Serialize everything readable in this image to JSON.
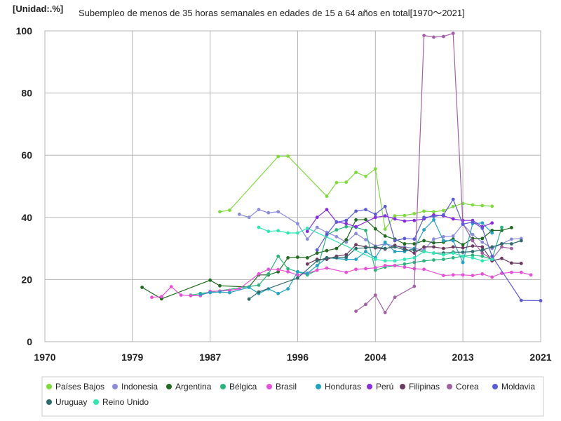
{
  "chart_data": {
    "type": "line",
    "unit_label": "[Unidad:.%]",
    "title": "Subempleo de menos de 35 horas semanales en edades de 15 a 64 años en total[1970～2021]",
    "xlabel": "",
    "ylabel": "",
    "xlim": [
      1970,
      2021
    ],
    "ylim": [
      0,
      100
    ],
    "x_ticks": [
      1970,
      1979,
      1987,
      1996,
      2004,
      2013,
      2021
    ],
    "y_ticks": [
      0,
      20,
      40,
      60,
      80,
      100
    ],
    "grid": true,
    "legend_position": "bottom",
    "series": [
      {
        "name": "Países Bajos",
        "color": "#7ddc3a",
        "points": [
          [
            1988,
            41.8
          ],
          [
            1989,
            42.3
          ],
          [
            1994,
            59.6
          ],
          [
            1995,
            59.7
          ],
          [
            1999,
            46.8
          ],
          [
            2000,
            51.2
          ],
          [
            2001,
            51.3
          ],
          [
            2002,
            54.5
          ],
          [
            2003,
            53.2
          ],
          [
            2004,
            55.6
          ],
          [
            2005,
            36.2
          ],
          [
            2006,
            40.5
          ],
          [
            2007,
            40.6
          ],
          [
            2008,
            41.2
          ],
          [
            2009,
            42.0
          ],
          [
            2010,
            41.8
          ],
          [
            2011,
            42.2
          ],
          [
            2012,
            43.5
          ],
          [
            2013,
            44.5
          ],
          [
            2014,
            44.0
          ],
          [
            2015,
            43.8
          ],
          [
            2016,
            43.6
          ]
        ]
      },
      {
        "name": "Indonesia",
        "color": "#8c8cdc",
        "points": [
          [
            1990,
            41.0
          ],
          [
            1991,
            40.0
          ],
          [
            1992,
            42.5
          ],
          [
            1993,
            41.5
          ],
          [
            1994,
            41.8
          ],
          [
            1996,
            38.0
          ],
          [
            1997,
            33.0
          ],
          [
            1998,
            36.8
          ],
          [
            1999,
            35.2
          ],
          [
            2000,
            33.8
          ],
          [
            2001,
            32.0
          ],
          [
            2002,
            34.8
          ],
          [
            2003,
            32.8
          ],
          [
            2004,
            30.8
          ],
          [
            2005,
            31.5
          ],
          [
            2006,
            30.8
          ],
          [
            2007,
            30.5
          ],
          [
            2008,
            30.0
          ],
          [
            2009,
            29.5
          ],
          [
            2010,
            33.0
          ],
          [
            2011,
            33.8
          ],
          [
            2012,
            34.0
          ],
          [
            2013,
            37.8
          ],
          [
            2014,
            34.5
          ],
          [
            2015,
            32.0
          ],
          [
            2016,
            30.0
          ],
          [
            2017,
            31.5
          ],
          [
            2018,
            33.0
          ],
          [
            2019,
            33.2
          ]
        ]
      },
      {
        "name": "Argentina",
        "color": "#1f6b1f",
        "points": [
          [
            1980,
            17.5
          ],
          [
            1982,
            13.8
          ],
          [
            1987,
            19.8
          ],
          [
            1988,
            18.0
          ],
          [
            1991,
            17.6
          ],
          [
            1992,
            21.5
          ],
          [
            1993,
            21.5
          ],
          [
            1994,
            22.5
          ],
          [
            1995,
            27.0
          ],
          [
            1996,
            27.2
          ],
          [
            1997,
            27.0
          ],
          [
            1998,
            28.5
          ],
          [
            1999,
            29.3
          ],
          [
            2000,
            30.0
          ],
          [
            2001,
            32.8
          ],
          [
            2002,
            39.2
          ],
          [
            2003,
            39.3
          ],
          [
            2004,
            36.3
          ],
          [
            2005,
            34.0
          ],
          [
            2006,
            33.0
          ],
          [
            2007,
            31.5
          ],
          [
            2008,
            31.5
          ],
          [
            2009,
            32.5
          ],
          [
            2010,
            31.8
          ],
          [
            2011,
            32.0
          ],
          [
            2012,
            33.0
          ],
          [
            2013,
            31.2
          ],
          [
            2014,
            33.2
          ],
          [
            2015,
            33.2
          ],
          [
            2016,
            35.8
          ],
          [
            2017,
            35.8
          ],
          [
            2018,
            36.7
          ]
        ]
      },
      {
        "name": "Bélgica",
        "color": "#2ab57d",
        "points": [
          [
            1985,
            15.0
          ],
          [
            1986,
            15.5
          ],
          [
            1992,
            18.2
          ],
          [
            1993,
            21.8
          ],
          [
            1994,
            27.5
          ],
          [
            1995,
            23.5
          ],
          [
            1996,
            22.5
          ],
          [
            1997,
            21.5
          ],
          [
            1998,
            23.0
          ],
          [
            1999,
            34.3
          ],
          [
            2000,
            36.0
          ],
          [
            2001,
            37.0
          ],
          [
            2002,
            36.8
          ],
          [
            2003,
            35.8
          ],
          [
            2004,
            23.0
          ],
          [
            2005,
            24.0
          ],
          [
            2006,
            24.5
          ],
          [
            2007,
            25.0
          ],
          [
            2008,
            25.5
          ],
          [
            2009,
            26.0
          ],
          [
            2010,
            26.3
          ],
          [
            2011,
            26.5
          ],
          [
            2012,
            27.0
          ],
          [
            2013,
            27.5
          ],
          [
            2014,
            27.8
          ],
          [
            2015,
            27.5
          ],
          [
            2016,
            26.5
          ],
          [
            2017,
            36.8
          ]
        ]
      },
      {
        "name": "Brasil",
        "color": "#e84fd8",
        "points": [
          [
            1981,
            14.3
          ],
          [
            1982,
            14.5
          ],
          [
            1983,
            17.7
          ],
          [
            1984,
            15.0
          ],
          [
            1985,
            14.8
          ],
          [
            1986,
            14.8
          ],
          [
            1987,
            16.2
          ],
          [
            1988,
            16.3
          ],
          [
            1989,
            16.5
          ],
          [
            1990,
            17.0
          ],
          [
            1992,
            21.8
          ],
          [
            1993,
            23.3
          ],
          [
            1994,
            23.2
          ],
          [
            1995,
            22.5
          ],
          [
            1996,
            21.5
          ],
          [
            1997,
            22.0
          ],
          [
            1998,
            23.0
          ],
          [
            1999,
            23.7
          ],
          [
            2001,
            22.3
          ],
          [
            2002,
            23.3
          ],
          [
            2003,
            23.5
          ],
          [
            2004,
            23.8
          ],
          [
            2005,
            24.5
          ],
          [
            2006,
            24.5
          ],
          [
            2007,
            24.0
          ],
          [
            2008,
            23.5
          ],
          [
            2009,
            23.3
          ],
          [
            2011,
            21.3
          ],
          [
            2012,
            21.5
          ],
          [
            2013,
            21.5
          ],
          [
            2014,
            21.3
          ],
          [
            2015,
            21.8
          ],
          [
            2016,
            20.8
          ],
          [
            2017,
            22.0
          ],
          [
            2018,
            22.3
          ],
          [
            2019,
            22.3
          ],
          [
            2020,
            21.5
          ]
        ]
      },
      {
        "name": "Honduras",
        "color": "#23a3c2",
        "points": [
          [
            1986,
            15.2
          ],
          [
            1987,
            15.8
          ],
          [
            1988,
            16.0
          ],
          [
            1989,
            15.8
          ],
          [
            1991,
            17.5
          ],
          [
            1992,
            15.5
          ],
          [
            1993,
            17.0
          ],
          [
            1994,
            15.5
          ],
          [
            1995,
            17.0
          ],
          [
            1996,
            22.5
          ],
          [
            1997,
            22.0
          ],
          [
            1998,
            24.5
          ],
          [
            1999,
            27.0
          ],
          [
            2001,
            26.5
          ],
          [
            2002,
            26.5
          ],
          [
            2003,
            29.0
          ],
          [
            2004,
            27.0
          ],
          [
            2005,
            32.0
          ],
          [
            2006,
            29.0
          ],
          [
            2007,
            29.0
          ],
          [
            2008,
            30.0
          ],
          [
            2009,
            36.0
          ],
          [
            2010,
            39.2
          ],
          [
            2011,
            32.5
          ],
          [
            2012,
            32.5
          ],
          [
            2013,
            25.5
          ],
          [
            2014,
            38.0
          ],
          [
            2015,
            38.2
          ],
          [
            2016,
            35.0
          ]
        ]
      },
      {
        "name": "Perú",
        "color": "#8a2be2",
        "points": [
          [
            1997,
            35.5
          ],
          [
            1998,
            40.0
          ],
          [
            1999,
            42.5
          ],
          [
            2000,
            38.5
          ],
          [
            2001,
            38.0
          ],
          [
            2002,
            37.0
          ],
          [
            2004,
            40.0
          ],
          [
            2005,
            40.5
          ],
          [
            2006,
            39.5
          ],
          [
            2007,
            38.8
          ],
          [
            2008,
            39.0
          ],
          [
            2009,
            39.5
          ],
          [
            2010,
            40.8
          ],
          [
            2011,
            40.5
          ],
          [
            2012,
            39.5
          ],
          [
            2013,
            39.0
          ],
          [
            2014,
            39.0
          ],
          [
            2015,
            37.0
          ],
          [
            2016,
            38.2
          ]
        ]
      },
      {
        "name": "Filipinas",
        "color": "#6b3a5e",
        "points": [
          [
            1997,
            25.0
          ],
          [
            1998,
            26.5
          ],
          [
            1999,
            26.5
          ],
          [
            2000,
            27.5
          ],
          [
            2001,
            28.0
          ],
          [
            2002,
            31.2
          ],
          [
            2003,
            30.5
          ],
          [
            2004,
            30.2
          ],
          [
            2005,
            29.8
          ],
          [
            2006,
            31.0
          ],
          [
            2007,
            30.0
          ],
          [
            2008,
            28.5
          ],
          [
            2009,
            30.5
          ],
          [
            2010,
            30.5
          ],
          [
            2011,
            30.0
          ],
          [
            2012,
            30.5
          ],
          [
            2013,
            30.2
          ],
          [
            2014,
            30.8
          ],
          [
            2015,
            30.5
          ],
          [
            2016,
            26.0
          ],
          [
            2017,
            26.8
          ],
          [
            2018,
            25.3
          ],
          [
            2019,
            25.2
          ]
        ]
      },
      {
        "name": "Corea",
        "color": "#a35fa6",
        "points": [
          [
            2002,
            9.8
          ],
          [
            2003,
            12.0
          ],
          [
            2004,
            15.0
          ],
          [
            2005,
            9.4
          ],
          [
            2006,
            14.3
          ],
          [
            2008,
            17.8
          ],
          [
            2009,
            98.5
          ],
          [
            2010,
            98.0
          ],
          [
            2011,
            98.2
          ],
          [
            2012,
            99.2
          ],
          [
            2013,
            38.0
          ],
          [
            2014,
            32.5
          ],
          [
            2015,
            28.5
          ],
          [
            2016,
            26.5
          ],
          [
            2017,
            30.5
          ],
          [
            2018,
            30.0
          ]
        ]
      },
      {
        "name": "Moldavia",
        "color": "#5b5bd6",
        "points": [
          [
            1998,
            29.5
          ],
          [
            1999,
            34.5
          ],
          [
            2000,
            38.5
          ],
          [
            2001,
            39.0
          ],
          [
            2002,
            42.0
          ],
          [
            2003,
            42.5
          ],
          [
            2004,
            41.0
          ],
          [
            2005,
            43.5
          ],
          [
            2006,
            32.5
          ],
          [
            2007,
            33.2
          ],
          [
            2008,
            33.0
          ],
          [
            2009,
            40.0
          ],
          [
            2010,
            40.3
          ],
          [
            2011,
            40.8
          ],
          [
            2012,
            45.8
          ],
          [
            2013,
            37.8
          ],
          [
            2014,
            38.5
          ],
          [
            2015,
            36.5
          ],
          [
            2016,
            27.5
          ],
          [
            2019,
            13.3
          ],
          [
            2021,
            13.2
          ]
        ]
      },
      {
        "name": "Uruguay",
        "color": "#2f6b6b",
        "points": [
          [
            1991,
            13.7
          ],
          [
            1992,
            16.0
          ],
          [
            1996,
            20.5
          ],
          [
            1998,
            26.0
          ],
          [
            1999,
            27.0
          ],
          [
            2000,
            27.0
          ],
          [
            2001,
            27.2
          ],
          [
            2002,
            30.0
          ],
          [
            2003,
            30.2
          ],
          [
            2004,
            30.5
          ],
          [
            2005,
            30.0
          ],
          [
            2006,
            30.5
          ],
          [
            2007,
            29.5
          ],
          [
            2008,
            29.5
          ],
          [
            2009,
            29.0
          ],
          [
            2010,
            28.5
          ],
          [
            2011,
            28.5
          ],
          [
            2012,
            28.8
          ],
          [
            2013,
            28.8
          ],
          [
            2014,
            29.0
          ],
          [
            2015,
            29.5
          ],
          [
            2016,
            30.5
          ],
          [
            2017,
            31.5
          ],
          [
            2018,
            31.5
          ],
          [
            2019,
            32.5
          ]
        ]
      },
      {
        "name": "Reino Unido",
        "color": "#2ee8b4",
        "points": [
          [
            1992,
            36.8
          ],
          [
            1993,
            35.5
          ],
          [
            1994,
            35.7
          ],
          [
            1995,
            35.0
          ],
          [
            1996,
            35.0
          ],
          [
            1997,
            36.5
          ],
          [
            2004,
            26.5
          ],
          [
            2005,
            26.0
          ],
          [
            2006,
            26.0
          ],
          [
            2007,
            26.5
          ],
          [
            2008,
            27.0
          ],
          [
            2009,
            29.0
          ],
          [
            2010,
            28.5
          ],
          [
            2011,
            28.0
          ],
          [
            2012,
            28.5
          ],
          [
            2013,
            27.5
          ],
          [
            2014,
            27.0
          ],
          [
            2015,
            26.0
          ],
          [
            2016,
            26.5
          ]
        ]
      }
    ]
  }
}
